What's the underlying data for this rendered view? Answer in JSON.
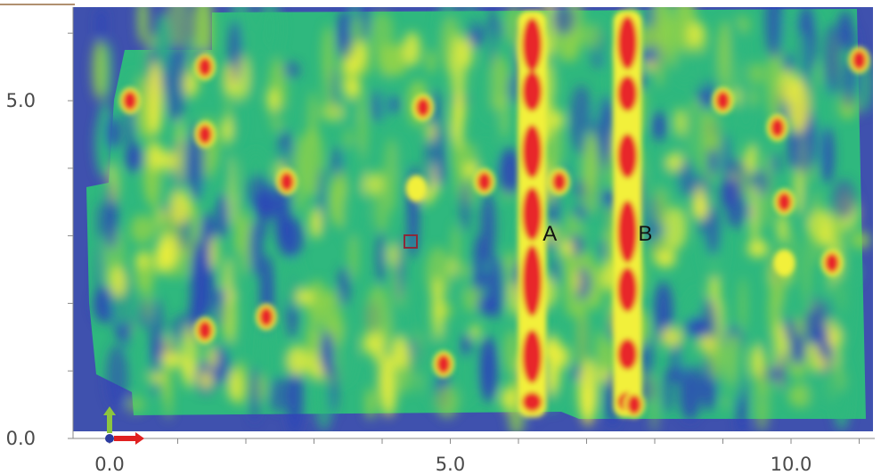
{
  "chart_data": {
    "type": "heatmap",
    "title": "",
    "xlabel": "",
    "ylabel": "",
    "x_ticks": [
      {
        "value": 0.0,
        "label": "0.0"
      },
      {
        "value": 5.0,
        "label": "5.0"
      },
      {
        "value": 10.0,
        "label": "10.0"
      }
    ],
    "y_ticks": [
      {
        "value": 0.0,
        "label": "0.0"
      },
      {
        "value": 5.0,
        "label": "5.0"
      }
    ],
    "xlim": [
      -0.1,
      11.5
    ],
    "ylim": [
      0.0,
      6.3
    ],
    "colors": {
      "background": "#3f51ae",
      "low": "#2b45b8",
      "mid_low": "#2fb87e",
      "mid": "#8fd24a",
      "high": "#f2f03a",
      "peak": "#e8262c",
      "axis_arrow_y": "#8cc63f",
      "axis_arrow_x": "#e02020",
      "axis_origin": "#2a3aa0",
      "marker": "#8a2a3a"
    },
    "peak_columns": [
      {
        "label": "A",
        "x": 6.2
      },
      {
        "label": "B",
        "x": 7.6
      }
    ],
    "hot_spots": [
      {
        "x": 0.3,
        "y": 5.0,
        "intensity": "peak"
      },
      {
        "x": 1.4,
        "y": 5.5,
        "intensity": "peak"
      },
      {
        "x": 1.4,
        "y": 4.5,
        "intensity": "peak"
      },
      {
        "x": 2.6,
        "y": 3.8,
        "intensity": "peak"
      },
      {
        "x": 4.5,
        "y": 3.7,
        "intensity": "high"
      },
      {
        "x": 4.6,
        "y": 4.9,
        "intensity": "peak"
      },
      {
        "x": 5.5,
        "y": 3.8,
        "intensity": "peak"
      },
      {
        "x": 6.6,
        "y": 3.8,
        "intensity": "peak"
      },
      {
        "x": 9.0,
        "y": 5.0,
        "intensity": "peak"
      },
      {
        "x": 9.8,
        "y": 4.6,
        "intensity": "peak"
      },
      {
        "x": 9.9,
        "y": 3.5,
        "intensity": "peak"
      },
      {
        "x": 9.9,
        "y": 2.6,
        "intensity": "high"
      },
      {
        "x": 10.6,
        "y": 2.6,
        "intensity": "peak"
      },
      {
        "x": 11.0,
        "y": 5.6,
        "intensity": "peak"
      },
      {
        "x": 1.4,
        "y": 1.6,
        "intensity": "peak"
      },
      {
        "x": 2.3,
        "y": 1.8,
        "intensity": "peak"
      },
      {
        "x": 4.9,
        "y": 1.1,
        "intensity": "peak"
      },
      {
        "x": 7.7,
        "y": 0.5,
        "intensity": "peak"
      }
    ],
    "legend": false,
    "grid": false
  }
}
